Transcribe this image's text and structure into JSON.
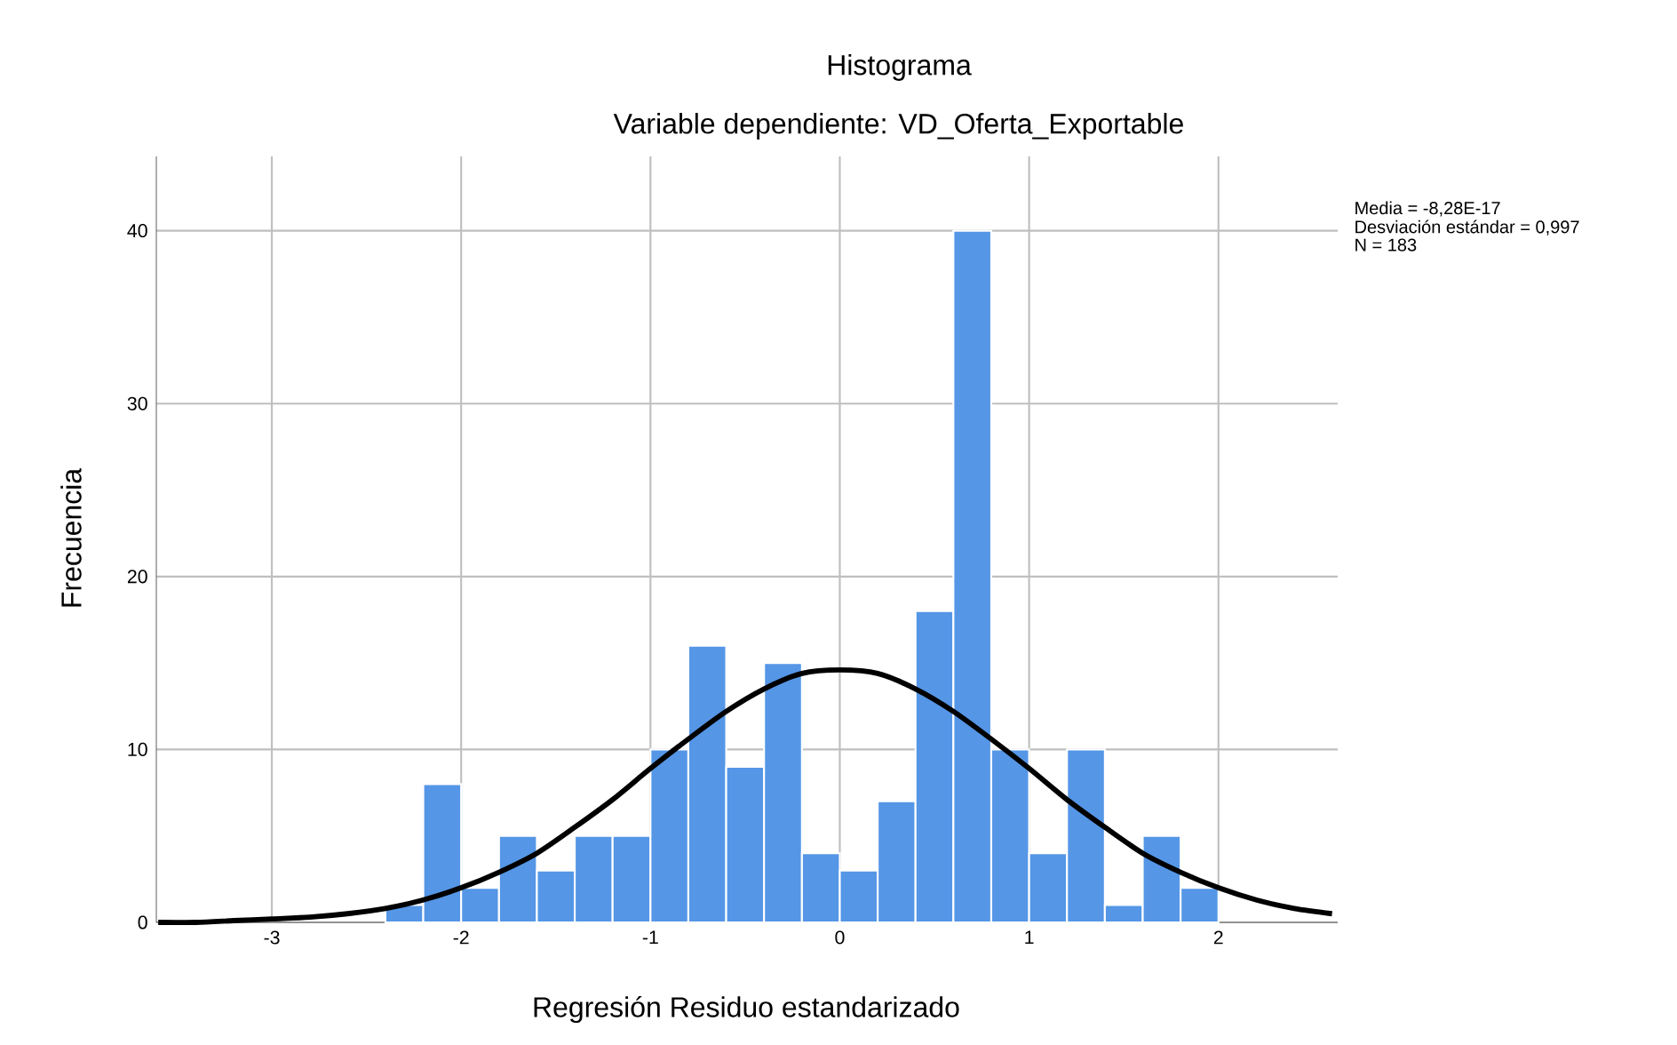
{
  "chart_data": {
    "type": "histogram",
    "title": "Histograma",
    "subtitle": "Variable dependiente: VD_Oferta_Exportable",
    "xlabel": "Regresión Residuo estandarizado",
    "ylabel": "Frecuencia",
    "annotations": [
      "Media = -8,28E-17",
      "Desviación estándar = 0,997",
      "N = 183"
    ],
    "bins": [
      -2.4,
      -2.2,
      -2.0,
      -1.8,
      -1.6,
      -1.4,
      -1.2,
      -1.0,
      -0.8,
      -0.6,
      -0.4,
      -0.2,
      0.0,
      0.2,
      0.4,
      0.6,
      0.8,
      1.0,
      1.2,
      1.4,
      1.6,
      1.8,
      2.0
    ],
    "values": [
      1,
      8,
      2,
      5,
      3,
      5,
      5,
      10,
      16,
      9,
      15,
      4,
      3,
      7,
      18,
      40,
      10,
      4,
      10,
      1,
      5,
      2
    ],
    "color": "#5596e6",
    "series": [
      {
        "type": "line",
        "color": "#000000",
        "x": [
          -3.6,
          -3.4,
          -3.2,
          -3.0,
          -2.8,
          -2.6,
          -2.4,
          -2.2,
          -2.0,
          -1.8,
          -1.6,
          -1.4,
          -1.2,
          -1.0,
          -0.8,
          -0.6,
          -0.4,
          -0.2,
          0.0,
          0.2,
          0.4,
          0.6,
          0.8,
          1.0,
          1.2,
          1.4,
          1.6,
          1.8,
          2.0,
          2.2,
          2.4,
          2.6
        ],
        "values": [
          0,
          0,
          0.1,
          0.2,
          0.3,
          0.5,
          0.8,
          1.3,
          2,
          2.9,
          4,
          5.5,
          7.1,
          8.9,
          10.6,
          12.2,
          13.5,
          14.4,
          14.6,
          14.4,
          13.5,
          12.2,
          10.6,
          8.9,
          7.1,
          5.5,
          4,
          2.9,
          2,
          1.3,
          0.8,
          0.5
        ]
      }
    ],
    "xlim": [
      -3.61,
      2.63
    ],
    "ylim": [
      0,
      44.3
    ],
    "xticks": [
      -3,
      -2,
      -1,
      0,
      1,
      2
    ],
    "yticks": [
      0,
      10,
      20,
      30,
      40
    ],
    "grid": true,
    "marker": "none",
    "line_style": "solid"
  }
}
